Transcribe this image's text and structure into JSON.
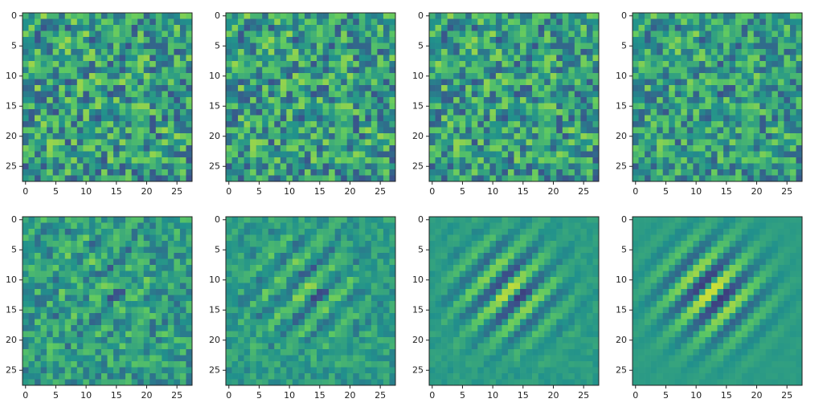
{
  "chart_data": [
    {
      "type": "heatmap",
      "xlim": [
        -0.5,
        27.5
      ],
      "ylim": [
        27.5,
        -0.5
      ],
      "xticks": [
        0,
        5,
        10,
        15,
        20,
        25
      ],
      "yticks": [
        0,
        5,
        10,
        15,
        20,
        25
      ]
    },
    {
      "type": "heatmap",
      "xlim": [
        -0.5,
        27.5
      ],
      "ylim": [
        27.5,
        -0.5
      ],
      "xticks": [
        0,
        5,
        10,
        15,
        20,
        25
      ],
      "yticks": [
        0,
        5,
        10,
        15,
        20,
        25
      ]
    },
    {
      "type": "heatmap",
      "xlim": [
        -0.5,
        27.5
      ],
      "ylim": [
        27.5,
        -0.5
      ],
      "xticks": [
        0,
        5,
        10,
        15,
        20,
        25
      ],
      "yticks": [
        0,
        5,
        10,
        15,
        20,
        25
      ]
    },
    {
      "type": "heatmap",
      "xlim": [
        -0.5,
        27.5
      ],
      "ylim": [
        27.5,
        -0.5
      ],
      "xticks": [
        0,
        5,
        10,
        15,
        20,
        25
      ],
      "yticks": [
        0,
        5,
        10,
        15,
        20,
        25
      ]
    },
    {
      "type": "heatmap",
      "xlim": [
        -0.5,
        27.5
      ],
      "ylim": [
        27.5,
        -0.5
      ],
      "xticks": [
        0,
        5,
        10,
        15,
        20,
        25
      ],
      "yticks": [
        0,
        5,
        10,
        15,
        20,
        25
      ]
    },
    {
      "type": "heatmap",
      "xlim": [
        -0.5,
        27.5
      ],
      "ylim": [
        27.5,
        -0.5
      ],
      "xticks": [
        0,
        5,
        10,
        15,
        20,
        25
      ],
      "yticks": [
        0,
        5,
        10,
        15,
        20,
        25
      ]
    },
    {
      "type": "heatmap",
      "xlim": [
        -0.5,
        27.5
      ],
      "ylim": [
        27.5,
        -0.5
      ],
      "xticks": [
        0,
        5,
        10,
        15,
        20,
        25
      ],
      "yticks": [
        0,
        5,
        10,
        15,
        20,
        25
      ]
    },
    {
      "type": "heatmap",
      "xlim": [
        -0.5,
        27.5
      ],
      "ylim": [
        27.5,
        -0.5
      ],
      "xticks": [
        0,
        5,
        10,
        15,
        20,
        25
      ],
      "yticks": [
        0,
        5,
        10,
        15,
        20,
        25
      ]
    }
  ]
}
